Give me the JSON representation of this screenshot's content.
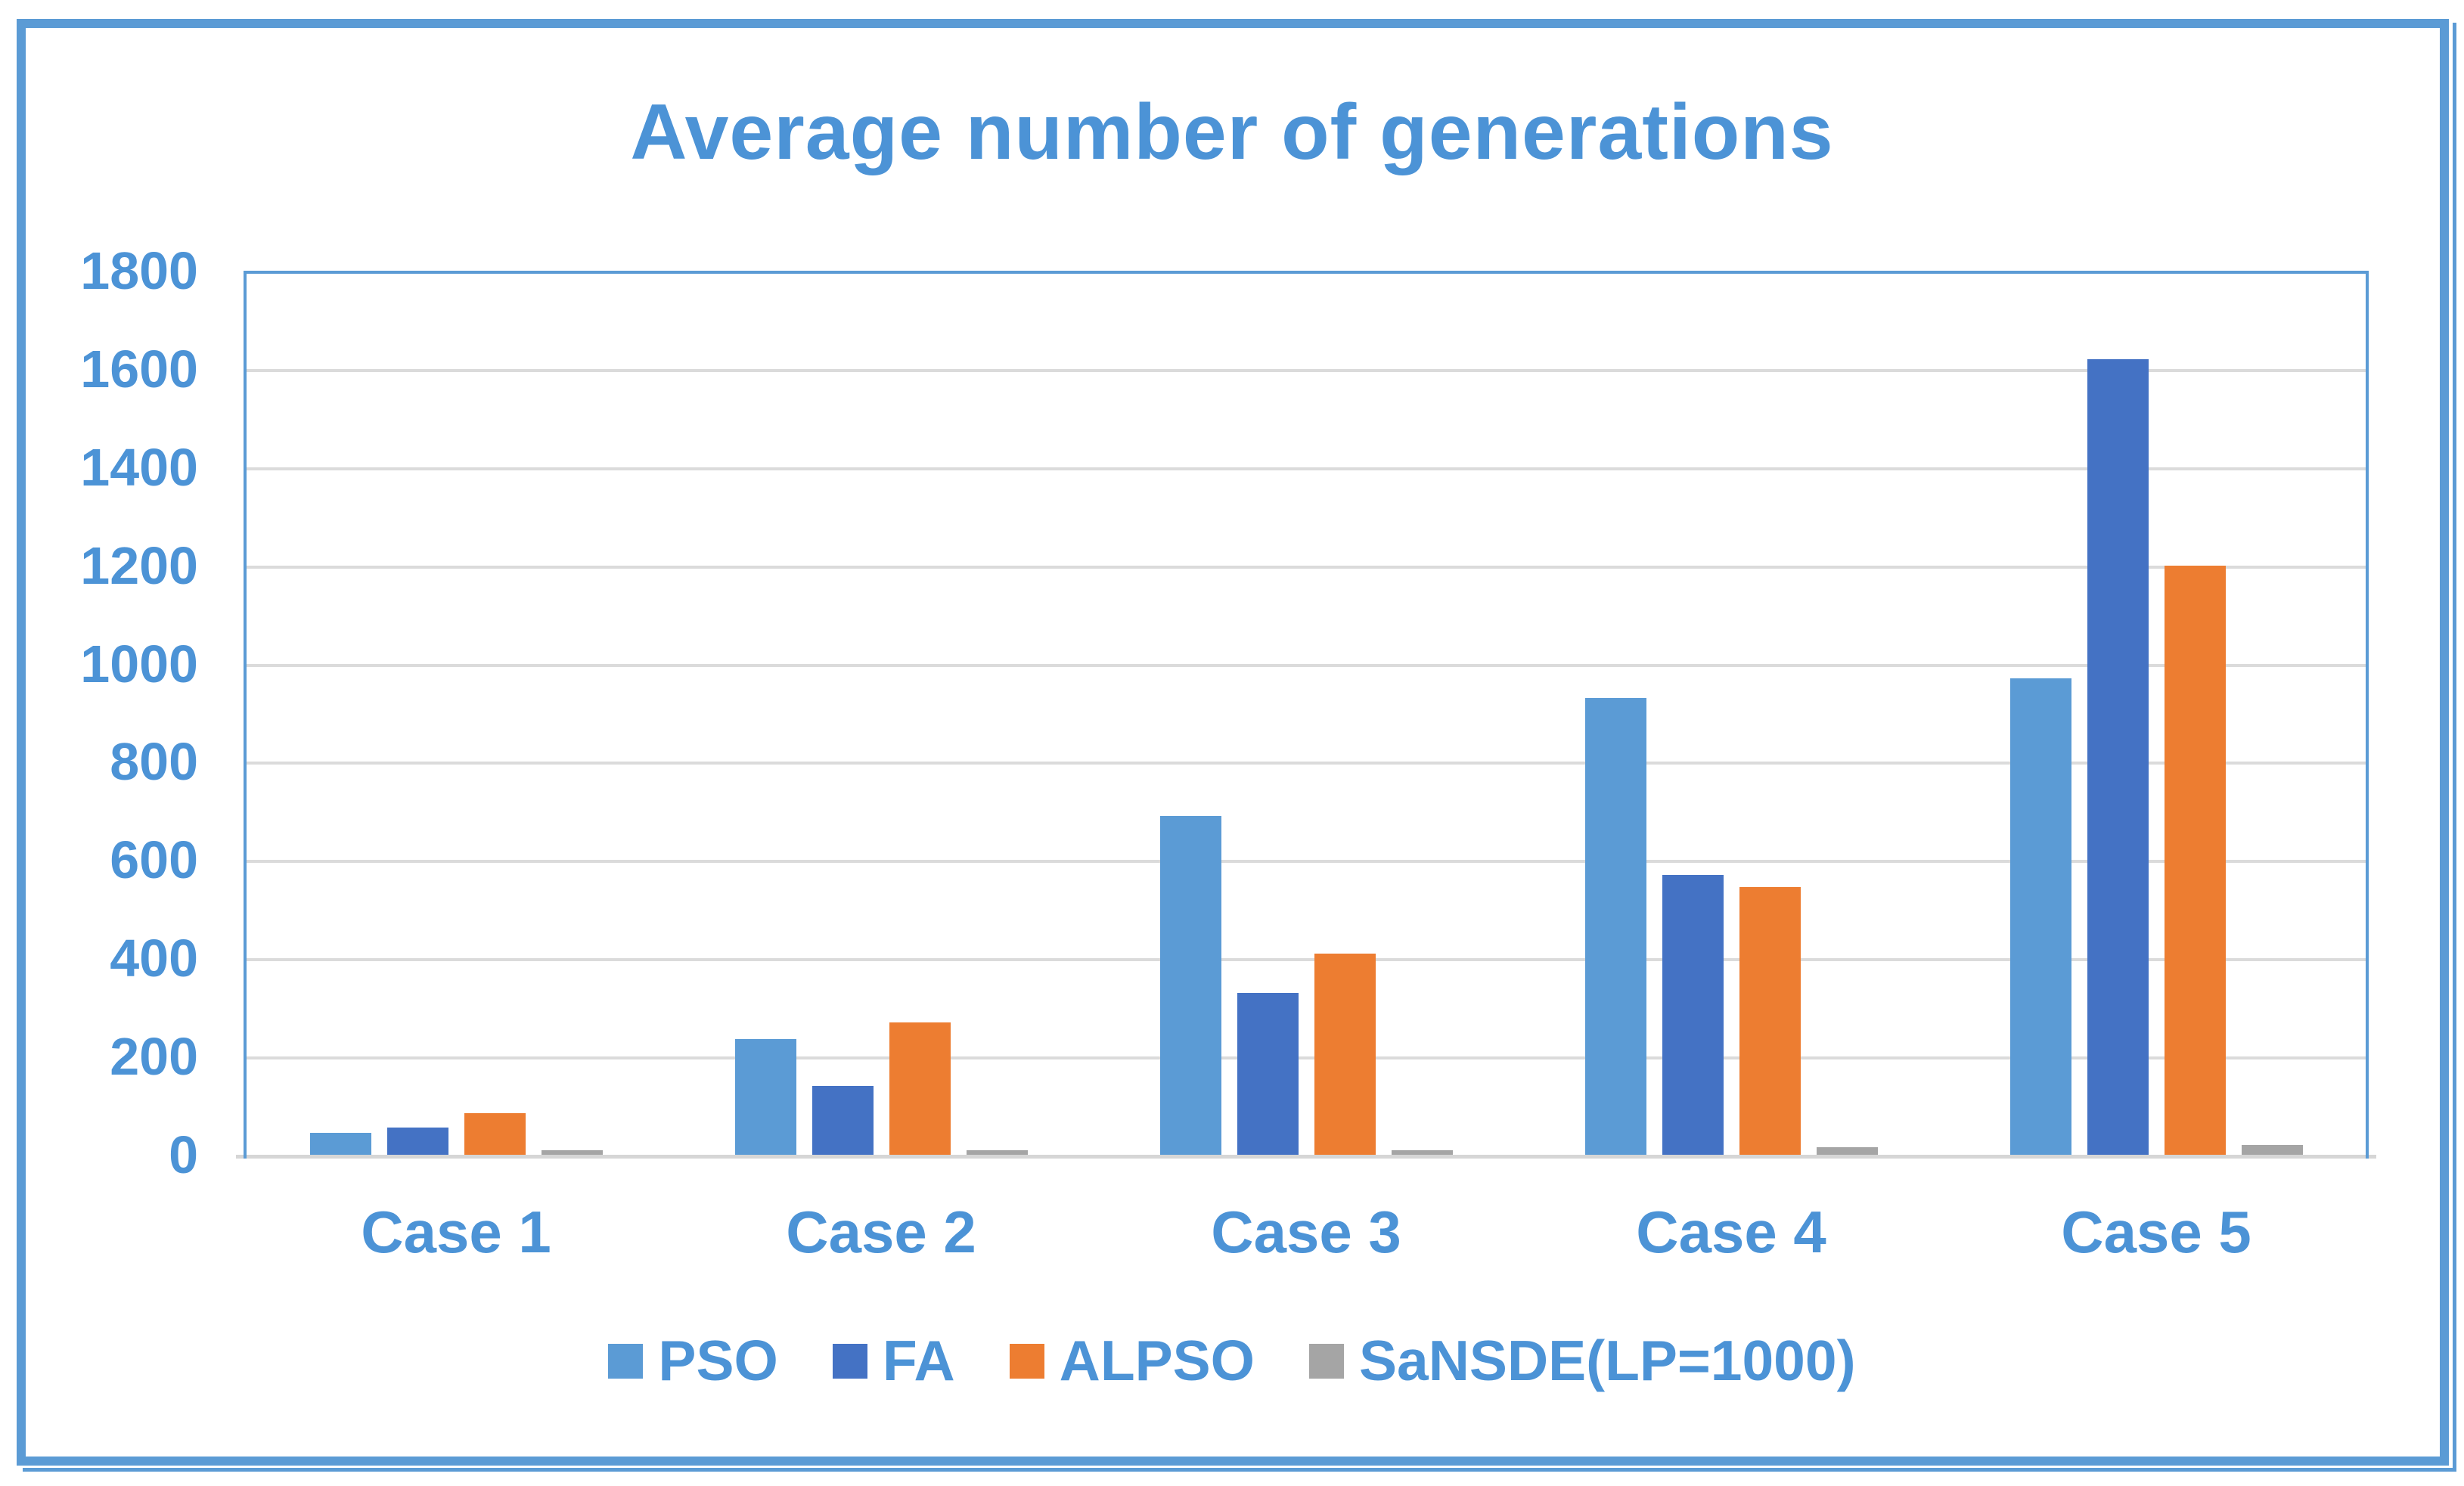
{
  "title": "Average number of generations",
  "styles": {
    "text_color": "#4C93D6",
    "frame_color": "#5B9BD5",
    "plot_border_color": "#5B9BD5",
    "grid_color": "#DBDBDB",
    "axis_color": "#D6D6D6",
    "background": "#FFFFFF"
  },
  "chart_data": {
    "type": "bar",
    "title": "Average number of generations",
    "categories": [
      "Case 1",
      "Case 2",
      "Case 3",
      "Case 4",
      "Case 5"
    ],
    "series": [
      {
        "name": "PSO",
        "color": "#5B9BD5",
        "values": [
          45,
          235,
          690,
          930,
          970
        ]
      },
      {
        "name": "FA",
        "color": "#4472C4",
        "values": [
          55,
          140,
          330,
          570,
          1620
        ]
      },
      {
        "name": "ALPSO",
        "color": "#ED7D31",
        "values": [
          85,
          270,
          410,
          545,
          1200
        ]
      },
      {
        "name": "SaNSDE(LP=1000)",
        "color": "#A5A5A5",
        "values": [
          10,
          10,
          10,
          15,
          20
        ]
      }
    ],
    "ylim": [
      0,
      1800
    ],
    "yticks": [
      0,
      200,
      400,
      600,
      800,
      1000,
      1200,
      1400,
      1600,
      1800
    ],
    "xlabel": "",
    "ylabel": "",
    "grid": "horizontal",
    "legend_position": "bottom"
  }
}
